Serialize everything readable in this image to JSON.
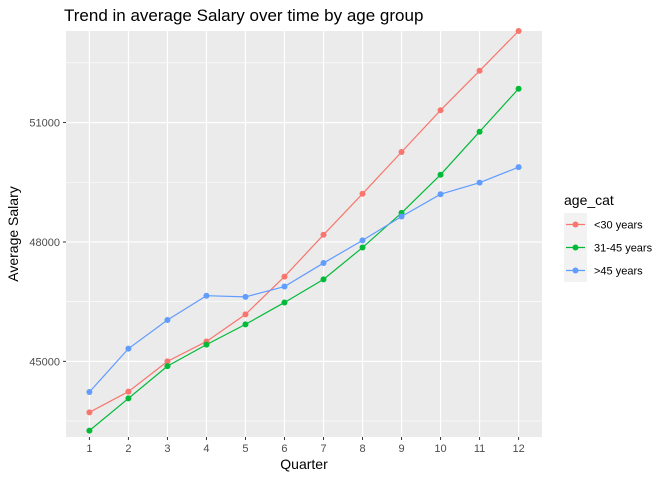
{
  "chart_data": {
    "type": "line",
    "title": "Trend in average Salary over time by age group",
    "xlabel": "Quarter",
    "ylabel": "Average Salary",
    "categories": [
      1,
      2,
      3,
      4,
      5,
      6,
      7,
      8,
      9,
      10,
      11,
      12
    ],
    "x_ticks": [
      "1",
      "2",
      "3",
      "4",
      "5",
      "6",
      "7",
      "8",
      "9",
      "10",
      "11",
      "12"
    ],
    "y_ticks": [
      45000,
      48000,
      51000
    ],
    "y_tick_labels": [
      "45000",
      "48000",
      "51000"
    ],
    "ylim": [
      43100,
      53300
    ],
    "grid": true,
    "legend": {
      "title": "age_cat",
      "position": "right"
    },
    "series": [
      {
        "name": "<30 years",
        "color": "#F8766D",
        "values": [
          43720,
          44240,
          45000,
          45500,
          46180,
          47130,
          48180,
          49210,
          50260,
          51310,
          52300,
          53300
        ]
      },
      {
        "name": "31-45 years",
        "color": "#00BA38",
        "values": [
          43260,
          44070,
          44880,
          45420,
          45930,
          46480,
          47060,
          47860,
          48730,
          49690,
          50770,
          51850
        ]
      },
      {
        "name": ">45 years",
        "color": "#619CFF",
        "values": [
          44230,
          45320,
          46040,
          46650,
          46620,
          46880,
          47470,
          48040,
          48640,
          49200,
          49490,
          49880
        ]
      }
    ]
  }
}
